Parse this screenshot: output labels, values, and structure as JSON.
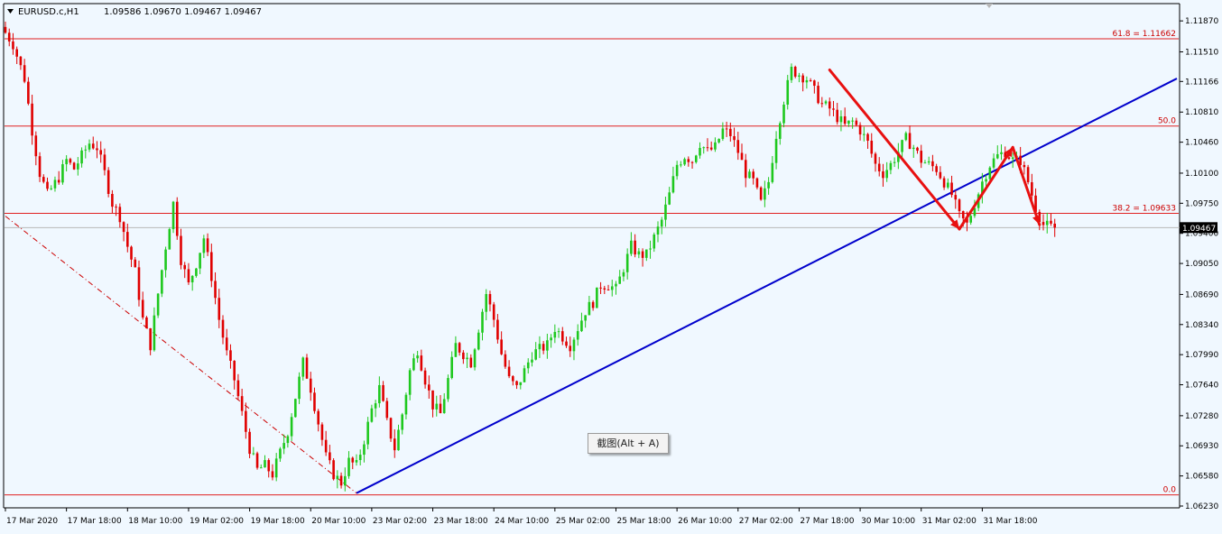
{
  "header": {
    "symbol": "EURUSD.c,H1",
    "ohlc": "1.09586 1.09670 1.09467 1.09467"
  },
  "tooltip": {
    "label": "截图(Alt + A)"
  },
  "chart_data": {
    "type": "candlestick",
    "symbol": "EURUSD.c",
    "timeframe": "H1",
    "y_ticks": [
      "1.11870",
      "1.11510",
      "1.11166",
      "1.10810",
      "1.10460",
      "1.10100",
      "1.09750",
      "1.09400",
      "1.09050",
      "1.08690",
      "1.08340",
      "1.07990",
      "1.07640",
      "1.07280",
      "1.06930",
      "1.06580",
      "1.06230"
    ],
    "x_ticks": [
      "17 Mar 2020",
      "17 Mar 18:00",
      "18 Mar 10:00",
      "19 Mar 02:00",
      "19 Mar 18:00",
      "20 Mar 10:00",
      "23 Mar 02:00",
      "23 Mar 18:00",
      "24 Mar 10:00",
      "25 Mar 02:00",
      "25 Mar 18:00",
      "26 Mar 10:00",
      "27 Mar 02:00",
      "27 Mar 18:00",
      "30 Mar 10:00",
      "31 Mar 02:00",
      "31 Mar 18:00"
    ],
    "ylim": [
      1.0623,
      1.1205
    ],
    "current_price": "1.09467",
    "fibonacci": [
      {
        "label": "61.8 = 1.11662",
        "value": 1.11662
      },
      {
        "label": "50.0",
        "value": 1.10648
      },
      {
        "label": "38.2 = 1.09633",
        "value": 1.09633
      },
      {
        "label": "0.0",
        "value": 1.0636
      }
    ],
    "price_path": [
      [
        0,
        1.118
      ],
      [
        3,
        1.116
      ],
      [
        6,
        1.112
      ],
      [
        8,
        1.106
      ],
      [
        10,
        1.101
      ],
      [
        12,
        1.0985
      ],
      [
        15,
        1.1005
      ],
      [
        17,
        1.1025
      ],
      [
        19,
        1.1015
      ],
      [
        21,
        1.103
      ],
      [
        23,
        1.1045
      ],
      [
        25,
        1.104
      ],
      [
        27,
        1.101
      ],
      [
        29,
        1.0975
      ],
      [
        31,
        1.096
      ],
      [
        33,
        1.0925
      ],
      [
        35,
        1.0895
      ],
      [
        37,
        1.084
      ],
      [
        39,
        1.081
      ],
      [
        41,
        1.087
      ],
      [
        43,
        1.0925
      ],
      [
        45,
        1.0975
      ],
      [
        47,
        1.091
      ],
      [
        49,
        1.088
      ],
      [
        51,
        1.0905
      ],
      [
        53,
        1.0935
      ],
      [
        55,
        1.089
      ],
      [
        57,
        1.084
      ],
      [
        59,
        1.08
      ],
      [
        61,
        1.077
      ],
      [
        63,
        1.073
      ],
      [
        65,
        1.069
      ],
      [
        67,
        1.0665
      ],
      [
        69,
        1.067
      ],
      [
        71,
        1.066
      ],
      [
        73,
        1.0685
      ],
      [
        75,
        1.071
      ],
      [
        77,
        1.075
      ],
      [
        79,
        1.079
      ],
      [
        81,
        1.076
      ],
      [
        83,
        1.072
      ],
      [
        85,
        1.068
      ],
      [
        87,
        1.066
      ],
      [
        89,
        1.065
      ],
      [
        91,
        1.0675
      ],
      [
        93,
        1.067
      ],
      [
        95,
        1.07
      ],
      [
        97,
        1.0735
      ],
      [
        99,
        1.076
      ],
      [
        101,
        1.072
      ],
      [
        103,
        1.069
      ],
      [
        105,
        1.073
      ],
      [
        107,
        1.078
      ],
      [
        109,
        1.0805
      ],
      [
        111,
        1.077
      ],
      [
        113,
        1.074
      ],
      [
        115,
        1.073
      ],
      [
        117,
        1.077
      ],
      [
        119,
        1.081
      ],
      [
        121,
        1.08
      ],
      [
        123,
        1.079
      ],
      [
        125,
        1.083
      ],
      [
        127,
        1.087
      ],
      [
        129,
        1.084
      ],
      [
        131,
        1.08
      ],
      [
        133,
        1.077
      ],
      [
        135,
        1.076
      ],
      [
        137,
        1.078
      ],
      [
        139,
        1.08
      ],
      [
        141,
        1.0805
      ],
      [
        143,
        1.081
      ],
      [
        145,
        1.083
      ],
      [
        147,
        1.082
      ],
      [
        149,
        1.081
      ],
      [
        151,
        1.083
      ],
      [
        153,
        1.085
      ],
      [
        155,
        1.086
      ],
      [
        157,
        1.088
      ],
      [
        159,
        1.088
      ],
      [
        161,
        1.0875
      ],
      [
        163,
        1.09
      ],
      [
        165,
        1.0925
      ],
      [
        167,
        1.0915
      ],
      [
        169,
        1.0915
      ],
      [
        171,
        1.0935
      ],
      [
        173,
        1.0955
      ],
      [
        175,
        1.0985
      ],
      [
        177,
        1.102
      ],
      [
        179,
        1.103
      ],
      [
        181,
        1.1025
      ],
      [
        183,
        1.1045
      ],
      [
        185,
        1.1035
      ],
      [
        187,
        1.104
      ],
      [
        189,
        1.106
      ],
      [
        191,
        1.1055
      ],
      [
        193,
        1.1035
      ],
      [
        195,
        1.101
      ],
      [
        197,
        1.1
      ],
      [
        199,
        1.0975
      ],
      [
        201,
        1.1
      ],
      [
        203,
        1.1055
      ],
      [
        205,
        1.1095
      ],
      [
        207,
        1.113
      ],
      [
        209,
        1.1125
      ],
      [
        211,
        1.112
      ],
      [
        213,
        1.1105
      ],
      [
        215,
        1.109
      ],
      [
        217,
        1.1085
      ],
      [
        219,
        1.1075
      ],
      [
        221,
        1.1065
      ],
      [
        223,
        1.107
      ],
      [
        225,
        1.106
      ],
      [
        227,
        1.1045
      ],
      [
        229,
        1.102
      ],
      [
        231,
        1.101
      ],
      [
        233,
        1.102
      ],
      [
        235,
        1.1035
      ],
      [
        237,
        1.105
      ],
      [
        239,
        1.104
      ],
      [
        241,
        1.1025
      ],
      [
        243,
        1.102
      ],
      [
        245,
        1.1015
      ],
      [
        247,
        1.1
      ],
      [
        249,
        1.0985
      ],
      [
        251,
        1.096
      ],
      [
        253,
        1.095
      ],
      [
        255,
        1.0975
      ],
      [
        257,
        1.1
      ],
      [
        259,
        1.102
      ],
      [
        261,
        1.103
      ],
      [
        263,
        1.1035
      ],
      [
        265,
        1.1025
      ],
      [
        267,
        1.1025
      ],
      [
        269,
        1.1
      ],
      [
        271,
        1.097
      ],
      [
        273,
        1.095
      ],
      [
        275,
        1.0947
      ]
    ],
    "trendlines": [
      {
        "color": "#0000cc",
        "from": [
          92,
          1.0638
        ],
        "to": [
          307,
          1.112
        ]
      },
      {
        "color": "#cc0000",
        "style": "dashdot",
        "from": [
          0,
          1.096
        ],
        "to": [
          92,
          1.0638
        ]
      }
    ],
    "annotation_arrows": [
      {
        "color": "#e81010",
        "from": [
          216,
          1.113
        ],
        "to": [
          250,
          1.0945
        ]
      },
      {
        "color": "#e81010",
        "from": [
          250,
          1.0945
        ],
        "to": [
          264,
          1.104
        ]
      },
      {
        "color": "#e81010",
        "from": [
          264,
          1.104
        ],
        "to": [
          271,
          1.095
        ]
      }
    ]
  }
}
